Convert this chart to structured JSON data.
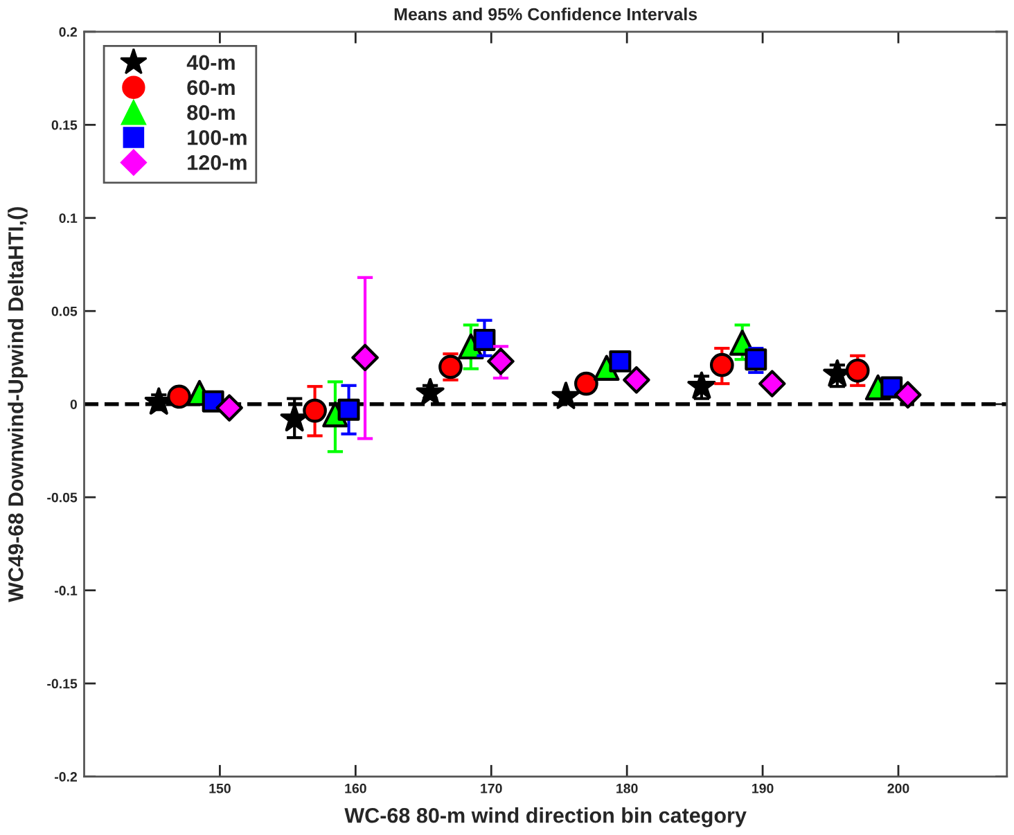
{
  "chart_data": {
    "type": "scatter",
    "title": "Means and 95% Confidence Intervals",
    "xlabel": "WC-68 80-m wind direction bin category",
    "ylabel": "WC49-68 Downwind-Upwind DeltaHTI,()",
    "xlim": [
      140,
      208
    ],
    "xticks": [
      150,
      160,
      170,
      180,
      190,
      200
    ],
    "ylim": [
      -0.2,
      0.2
    ],
    "yticks": [
      -0.2,
      -0.15,
      -0.1,
      -0.05,
      0,
      0.05,
      0.1,
      0.15,
      0.2
    ],
    "grid": false,
    "legend": "top left",
    "ref_lines": [
      {
        "axis": "y",
        "value": 0,
        "color": "#000000",
        "line_style": "dashed"
      }
    ],
    "series": [
      {
        "name": "40-m",
        "color": "#000000",
        "marker": "star",
        "x": [
          145.5,
          155.5,
          165.5,
          175.5,
          185.5,
          195.5
        ],
        "values": [
          0.001,
          -0.008,
          0.006,
          0.004,
          0.0095,
          0.016
        ],
        "errors": [
          [
            -0.003,
            0.005
          ],
          [
            -0.018,
            0.003
          ],
          [
            0.003,
            0.01
          ],
          null,
          [
            0.003,
            0.015
          ],
          [
            0.0095,
            0.021
          ]
        ]
      },
      {
        "name": "60-m",
        "color": "#ff0000",
        "marker": "circle",
        "x": [
          147,
          157,
          167,
          177,
          187,
          197
        ],
        "values": [
          0.004,
          -0.0035,
          0.02,
          0.011,
          0.021,
          0.018
        ],
        "errors": [
          null,
          [
            -0.017,
            0.0095
          ],
          [
            0.013,
            0.027
          ],
          null,
          [
            0.011,
            0.03
          ],
          [
            0.01,
            0.026
          ]
        ]
      },
      {
        "name": "80-m",
        "color": "#00ff00",
        "marker": "triangle",
        "x": [
          148.5,
          158.5,
          168.5,
          178.5,
          188.5,
          198.5
        ],
        "values": [
          0.006,
          -0.0055,
          0.031,
          0.0195,
          0.033,
          0.009
        ],
        "errors": [
          null,
          [
            -0.0255,
            0.012
          ],
          [
            0.019,
            0.0425
          ],
          null,
          [
            0.024,
            0.0425
          ],
          null
        ]
      },
      {
        "name": "100-m",
        "color": "#0000ff",
        "marker": "square",
        "x": [
          149.5,
          159.5,
          169.5,
          179.5,
          189.5,
          199.5
        ],
        "values": [
          0.0015,
          -0.003,
          0.0345,
          0.023,
          0.024,
          0.009
        ],
        "errors": [
          null,
          [
            -0.016,
            0.01
          ],
          [
            0.026,
            0.045
          ],
          null,
          [
            0.017,
            0.03
          ],
          null
        ]
      },
      {
        "name": "120-m",
        "color": "#ff00ff",
        "marker": "diamond",
        "x": [
          150.7,
          160.7,
          170.7,
          180.7,
          190.7,
          200.7
        ],
        "values": [
          -0.002,
          0.025,
          0.023,
          0.013,
          0.011,
          0.005
        ],
        "errors": [
          null,
          [
            -0.0185,
            0.068
          ],
          [
            0.014,
            0.031
          ],
          null,
          null,
          null
        ]
      }
    ]
  }
}
